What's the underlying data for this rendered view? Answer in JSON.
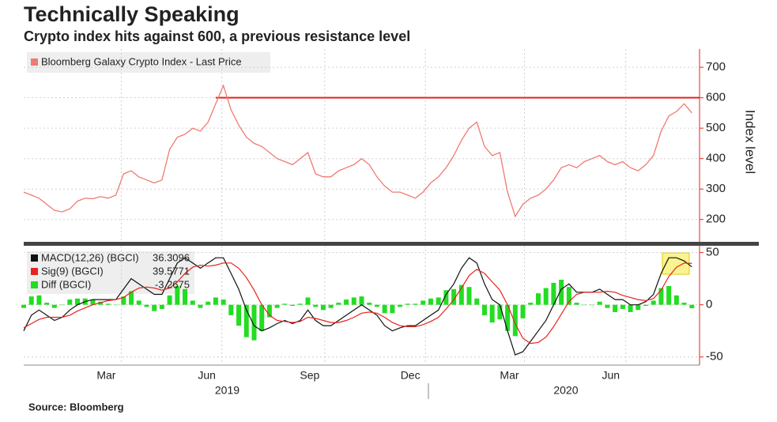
{
  "title": "Technically Speaking",
  "subtitle": "Crypto index hits against 600, a previous resistance level",
  "source": "Source: Bloomberg",
  "chart_data": [
    {
      "type": "line",
      "y_axis_label": "Index level",
      "resistance_level": 600,
      "resistance_start": 25,
      "xlim": [
        0,
        88
      ],
      "x": [
        0,
        1,
        2,
        3,
        4,
        5,
        6,
        7,
        8,
        9,
        10,
        11,
        12,
        13,
        14,
        15,
        16,
        17,
        18,
        19,
        20,
        21,
        22,
        23,
        24,
        25,
        26,
        27,
        28,
        29,
        30,
        31,
        32,
        33,
        34,
        35,
        36,
        37,
        38,
        39,
        40,
        41,
        42,
        43,
        44,
        45,
        46,
        47,
        48,
        49,
        50,
        51,
        52,
        53,
        54,
        55,
        56,
        57,
        58,
        59,
        60,
        61,
        62,
        63,
        64,
        65,
        66,
        67,
        68,
        69,
        70,
        71,
        72,
        73,
        74,
        75,
        76,
        77,
        78,
        79,
        80,
        81,
        82,
        83,
        84,
        85,
        86,
        87
      ],
      "ylim": [
        150,
        760
      ],
      "yticks": [
        200,
        300,
        400,
        500,
        600,
        700
      ],
      "grid": true,
      "series": [
        {
          "name": "Bloomberg Galaxy Crypto Index - Last Price",
          "color": "#f07a72",
          "values": [
            290,
            280,
            270,
            250,
            230,
            225,
            235,
            260,
            270,
            268,
            275,
            270,
            280,
            350,
            360,
            340,
            330,
            320,
            330,
            430,
            470,
            480,
            500,
            490,
            520,
            580,
            640,
            560,
            510,
            470,
            450,
            440,
            420,
            400,
            390,
            380,
            400,
            420,
            350,
            340,
            340,
            360,
            370,
            380,
            400,
            380,
            340,
            310,
            290,
            290,
            280,
            270,
            290,
            320,
            340,
            370,
            410,
            460,
            500,
            520,
            440,
            410,
            420,
            290,
            210,
            250,
            270,
            280,
            300,
            330,
            370,
            380,
            370,
            390,
            400,
            410,
            390,
            380,
            390,
            370,
            360,
            380,
            410,
            490,
            540,
            555,
            580,
            550
          ]
        }
      ]
    },
    {
      "type": "line",
      "xlim": [
        0,
        88
      ],
      "x": [
        0,
        1,
        2,
        3,
        4,
        5,
        6,
        7,
        8,
        9,
        10,
        11,
        12,
        13,
        14,
        15,
        16,
        17,
        18,
        19,
        20,
        21,
        22,
        23,
        24,
        25,
        26,
        27,
        28,
        29,
        30,
        31,
        32,
        33,
        34,
        35,
        36,
        37,
        38,
        39,
        40,
        41,
        42,
        43,
        44,
        45,
        46,
        47,
        48,
        49,
        50,
        51,
        52,
        53,
        54,
        55,
        56,
        57,
        58,
        59,
        60,
        61,
        62,
        63,
        64,
        65,
        66,
        67,
        68,
        69,
        70,
        71,
        72,
        73,
        74,
        75,
        76,
        77,
        78,
        79,
        80,
        81,
        82,
        83,
        84,
        85,
        86,
        87
      ],
      "ylim": [
        -57,
        55
      ],
      "yticks": [
        -50,
        0,
        50
      ],
      "xticks": [
        {
          "value": 12.7,
          "label": "Mar"
        },
        {
          "value": 25.8,
          "label": "Jun"
        },
        {
          "value": 39.2,
          "label": "Sep"
        },
        {
          "value": 52.3,
          "label": "Dec"
        },
        {
          "value": 65.2,
          "label": "Mar"
        },
        {
          "value": 78.4,
          "label": "Jun"
        }
      ],
      "year_labels": [
        {
          "value": 26.5,
          "label": "2019"
        },
        {
          "value": 70.6,
          "label": "2020"
        }
      ],
      "series": [
        {
          "name": "MACD(12,26) (BGCI)",
          "legend_value": 36.3096,
          "color": "#111111",
          "values": [
            -25,
            -10,
            -5,
            -10,
            -15,
            -12,
            -5,
            0,
            3,
            5,
            5,
            5,
            5,
            15,
            25,
            20,
            15,
            10,
            10,
            25,
            40,
            45,
            40,
            35,
            40,
            45,
            45,
            30,
            15,
            -5,
            -20,
            -25,
            -22,
            -18,
            -15,
            -18,
            -15,
            -5,
            -15,
            -20,
            -20,
            -15,
            -10,
            -5,
            0,
            -5,
            -10,
            -20,
            -25,
            -22,
            -20,
            -20,
            -15,
            -10,
            -5,
            10,
            20,
            35,
            45,
            40,
            20,
            5,
            0,
            -25,
            -48,
            -45,
            -35,
            -25,
            -15,
            0,
            15,
            20,
            12,
            12,
            12,
            15,
            10,
            5,
            5,
            0,
            0,
            3,
            10,
            30,
            45,
            45,
            42,
            36.3096
          ]
        },
        {
          "name": "Sig(9) (BGCI)",
          "legend_value": 39.5771,
          "color": "#e8231f",
          "values": [
            -22,
            -18,
            -14,
            -12,
            -12,
            -12,
            -10,
            -6,
            -3,
            0,
            2,
            4,
            5,
            7,
            12,
            16,
            17,
            16,
            14,
            16,
            22,
            30,
            36,
            38,
            37,
            38,
            40,
            40,
            35,
            26,
            14,
            0,
            -10,
            -15,
            -16,
            -17,
            -16,
            -12,
            -13,
            -15,
            -17,
            -17,
            -15,
            -12,
            -8,
            -7,
            -8,
            -12,
            -17,
            -20,
            -21,
            -21,
            -19,
            -16,
            -12,
            -4,
            5,
            16,
            28,
            34,
            30,
            22,
            14,
            0,
            -18,
            -32,
            -37,
            -36,
            -31,
            -21,
            -9,
            3,
            10,
            12,
            12,
            12,
            13,
            12,
            9,
            7,
            5,
            4,
            6,
            14,
            27,
            36,
            40,
            39.5771
          ]
        },
        {
          "name": "Diff (BGCI)",
          "legend_value": -3.2675,
          "color": "#22dd22",
          "type": "bar",
          "values": [
            -3,
            8,
            9,
            2,
            -3,
            0,
            5,
            6,
            6,
            5,
            3,
            1,
            0,
            8,
            13,
            4,
            -2,
            -6,
            -4,
            9,
            18,
            15,
            4,
            -3,
            3,
            7,
            5,
            -10,
            -20,
            -31,
            -34,
            -25,
            -12,
            -3,
            1,
            -1,
            1,
            7,
            -2,
            -5,
            -3,
            2,
            5,
            7,
            8,
            2,
            -2,
            -8,
            -8,
            -2,
            1,
            1,
            4,
            6,
            7,
            14,
            15,
            19,
            17,
            6,
            -10,
            -17,
            -14,
            -25,
            -30,
            -13,
            2,
            11,
            16,
            21,
            24,
            17,
            2,
            0,
            0,
            3,
            -3,
            -7,
            -4,
            -7,
            -5,
            -1,
            4,
            16,
            18,
            9,
            2,
            -3.2675
          ]
        }
      ]
    }
  ]
}
